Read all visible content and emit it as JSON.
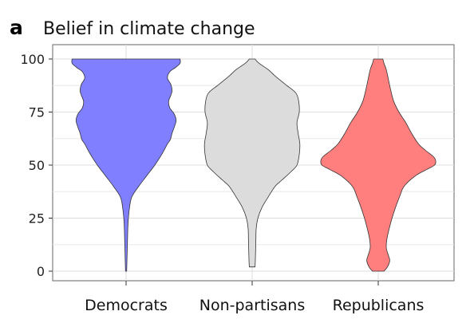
{
  "panel_label": "a",
  "chart_data": {
    "type": "violin",
    "title": "Belief in climate change",
    "xlabel": "",
    "ylabel": "",
    "ylim": [
      0,
      100
    ],
    "yticks": [
      0,
      25,
      50,
      75,
      100
    ],
    "grid": true,
    "legend": "none",
    "categories": [
      "Democrats",
      "Non-partisans",
      "Republicans"
    ],
    "series": [
      {
        "category": "Democrats",
        "color": "#7f7fff",
        "range": [
          0,
          100
        ],
        "density": [
          [
            0,
            0.01
          ],
          [
            5,
            0.015
          ],
          [
            10,
            0.02
          ],
          [
            15,
            0.025
          ],
          [
            20,
            0.03
          ],
          [
            25,
            0.04
          ],
          [
            30,
            0.06
          ],
          [
            35,
            0.1
          ],
          [
            40,
            0.22
          ],
          [
            45,
            0.36
          ],
          [
            50,
            0.5
          ],
          [
            55,
            0.62
          ],
          [
            60,
            0.72
          ],
          [
            62,
            0.77
          ],
          [
            65,
            0.8
          ],
          [
            68,
            0.84
          ],
          [
            71,
            0.87
          ],
          [
            74,
            0.84
          ],
          [
            77,
            0.76
          ],
          [
            80,
            0.74
          ],
          [
            83,
            0.78
          ],
          [
            85,
            0.8
          ],
          [
            88,
            0.78
          ],
          [
            91,
            0.72
          ],
          [
            94,
            0.76
          ],
          [
            96,
            0.86
          ],
          [
            98,
            0.94
          ],
          [
            100,
            0.94
          ]
        ]
      },
      {
        "category": "Non-partisans",
        "color": "#dcdcdc",
        "range": [
          2,
          100
        ],
        "density": [
          [
            2,
            0.05
          ],
          [
            5,
            0.055
          ],
          [
            10,
            0.06
          ],
          [
            15,
            0.065
          ],
          [
            20,
            0.07
          ],
          [
            25,
            0.1
          ],
          [
            30,
            0.17
          ],
          [
            35,
            0.28
          ],
          [
            40,
            0.4
          ],
          [
            43,
            0.52
          ],
          [
            47,
            0.68
          ],
          [
            50,
            0.78
          ],
          [
            55,
            0.82
          ],
          [
            60,
            0.83
          ],
          [
            65,
            0.8
          ],
          [
            70,
            0.78
          ],
          [
            75,
            0.82
          ],
          [
            80,
            0.81
          ],
          [
            84,
            0.76
          ],
          [
            88,
            0.58
          ],
          [
            92,
            0.4
          ],
          [
            95,
            0.28
          ],
          [
            98,
            0.12
          ],
          [
            100,
            0.05
          ]
        ]
      },
      {
        "category": "Republicans",
        "color": "#ff7f7f",
        "range": [
          0,
          100
        ],
        "density": [
          [
            0,
            0.1
          ],
          [
            2,
            0.16
          ],
          [
            5,
            0.2
          ],
          [
            8,
            0.17
          ],
          [
            11,
            0.14
          ],
          [
            15,
            0.15
          ],
          [
            20,
            0.19
          ],
          [
            25,
            0.24
          ],
          [
            30,
            0.3
          ],
          [
            35,
            0.37
          ],
          [
            40,
            0.45
          ],
          [
            45,
            0.65
          ],
          [
            48,
            0.85
          ],
          [
            50,
            0.98
          ],
          [
            52,
            1.0
          ],
          [
            54,
            0.96
          ],
          [
            57,
            0.82
          ],
          [
            60,
            0.7
          ],
          [
            65,
            0.58
          ],
          [
            70,
            0.48
          ],
          [
            75,
            0.36
          ],
          [
            80,
            0.27
          ],
          [
            85,
            0.22
          ],
          [
            90,
            0.18
          ],
          [
            95,
            0.14
          ],
          [
            98,
            0.1
          ],
          [
            100,
            0.08
          ]
        ]
      }
    ]
  }
}
